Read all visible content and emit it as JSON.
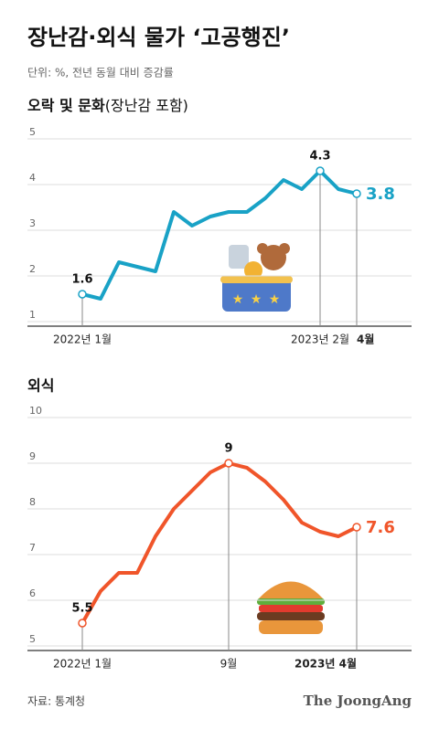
{
  "header": {
    "title": "장난감·외식 물가 ‘고공행진’",
    "subtitle": "단위: %, 전년 동월 대비 증감률"
  },
  "chart_data": [
    {
      "type": "line",
      "title": "오락 및 문화",
      "title_note": "(장난감 포함)",
      "categories": [
        "2022년 1월",
        null,
        null,
        null,
        null,
        null,
        null,
        null,
        null,
        null,
        null,
        null,
        null,
        "2023년 2월",
        null,
        "4월"
      ],
      "series": [
        {
          "color": "#19a2c6",
          "values": [
            1.6,
            1.5,
            2.3,
            2.2,
            2.1,
            3.4,
            3.1,
            3.3,
            3.4,
            3.4,
            3.7,
            4.1,
            3.9,
            4.3,
            3.9,
            3.8
          ]
        }
      ],
      "ylim": [
        1,
        5
      ],
      "yticks": [
        1,
        2,
        3,
        4,
        5
      ],
      "grid": true
    },
    {
      "type": "line",
      "title": "외식",
      "categories": [
        "2022년 1월",
        null,
        null,
        null,
        null,
        null,
        null,
        null,
        "9월",
        null,
        null,
        null,
        null,
        null,
        null,
        "2023년 4월"
      ],
      "series": [
        {
          "color": "#f0552a",
          "values": [
            5.5,
            6.2,
            6.6,
            6.6,
            7.4,
            8.0,
            8.4,
            8.8,
            9.0,
            8.9,
            8.6,
            8.2,
            7.7,
            7.5,
            7.4,
            7.6
          ]
        }
      ],
      "ylim": [
        5,
        10
      ],
      "yticks": [
        5,
        6,
        7,
        8,
        9,
        10
      ],
      "grid": true
    }
  ],
  "footer": {
    "source": "자료: 통계청",
    "brand": "The JoongAng"
  }
}
